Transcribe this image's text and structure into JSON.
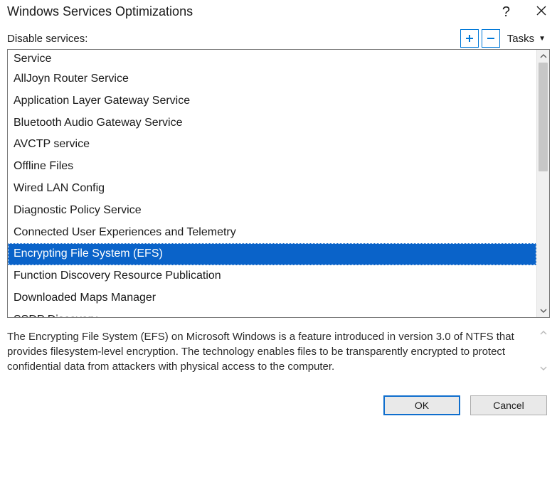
{
  "window": {
    "title": "Windows Services Optimizations"
  },
  "toolbar": {
    "label": "Disable services:",
    "tasks_label": "Tasks"
  },
  "list": {
    "header": "Service",
    "selected_index": 8,
    "items": [
      "AllJoyn Router Service",
      "Application Layer Gateway Service",
      "Bluetooth Audio Gateway Service",
      "AVCTP service",
      "Offline Files",
      "Wired LAN Config",
      "Diagnostic Policy Service",
      "Connected User Experiences and Telemetry",
      "Encrypting File System (EFS)",
      "Function Discovery Resource Publication",
      "Downloaded Maps Manager",
      "SSDP Discovery"
    ]
  },
  "description": {
    "text": "The Encrypting File System (EFS) on Microsoft Windows is a feature introduced in version 3.0 of NTFS that provides filesystem-level encryption. The technology enables files to be transparently encrypted to protect confidential data from attackers with physical access to the computer."
  },
  "buttons": {
    "ok": "OK",
    "cancel": "Cancel"
  },
  "colors": {
    "selection_bg": "#0a63c9",
    "selection_fg": "#ffffff",
    "accent": "#0078d7",
    "border": "#7a7a7a"
  }
}
